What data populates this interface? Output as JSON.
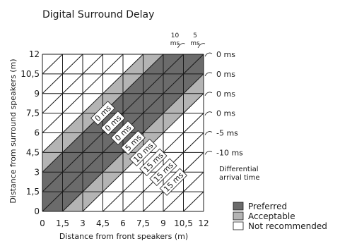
{
  "chart_data": {
    "type": "heatmap",
    "title": "Digital Surround Delay",
    "xlabel": "Distance from front speakers (m)",
    "ylabel": "Distance from surround speakers (m)",
    "xlim": [
      0,
      12
    ],
    "ylim": [
      0,
      12
    ],
    "x_ticks": [
      "0",
      "1,5",
      "3",
      "4,5",
      "6",
      "7,5",
      "9",
      "10,5",
      "12"
    ],
    "y_ticks": [
      "0",
      "1,5",
      "3",
      "4,5",
      "6",
      "7,5",
      "9",
      "10,5",
      "12"
    ],
    "grid": true,
    "bands": [
      {
        "name": "Acceptable",
        "from": -3,
        "to": -1.5
      },
      {
        "name": "Preferred",
        "from": -1.5,
        "to": 3
      },
      {
        "name": "Acceptable",
        "from": 3,
        "to": 4.5
      }
    ],
    "diagonal_labels": [
      {
        "text": "0 ms",
        "x": 4.5,
        "y": 7.5
      },
      {
        "text": "0 ms",
        "x": 5.25,
        "y": 6.75
      },
      {
        "text": "0 ms",
        "x": 6,
        "y": 6
      },
      {
        "text": "5 ms",
        "x": 6.75,
        "y": 5.25
      },
      {
        "text": "10 ms",
        "x": 7.5,
        "y": 4.5
      },
      {
        "text": "15 ms",
        "x": 8.25,
        "y": 3.75
      },
      {
        "text": "15 ms",
        "x": 9,
        "y": 3
      },
      {
        "text": "15 ms",
        "x": 9.75,
        "y": 2.25
      }
    ],
    "right_labels": [
      {
        "text": "0 ms",
        "y": 12
      },
      {
        "text": "0 ms",
        "y": 10.5
      },
      {
        "text": "0 ms",
        "y": 9
      },
      {
        "text": "0 ms",
        "y": 7.5
      },
      {
        "text": "-5 ms",
        "y": 6
      },
      {
        "text": "-10 ms",
        "y": 4.5
      }
    ],
    "right_caption": [
      "Differential",
      "arrival time"
    ],
    "top_labels": [
      {
        "text": [
          "10",
          "ms"
        ],
        "x": 10.5
      },
      {
        "text": [
          "5",
          "ms"
        ],
        "x": 12
      }
    ],
    "legend": [
      {
        "label": "Preferred",
        "color": "#6b6b6b"
      },
      {
        "label": "Acceptable",
        "color": "#b4b4b4"
      },
      {
        "label": "Not recommended",
        "color": "#ffffff"
      }
    ],
    "legend_position": "bottom-right"
  }
}
